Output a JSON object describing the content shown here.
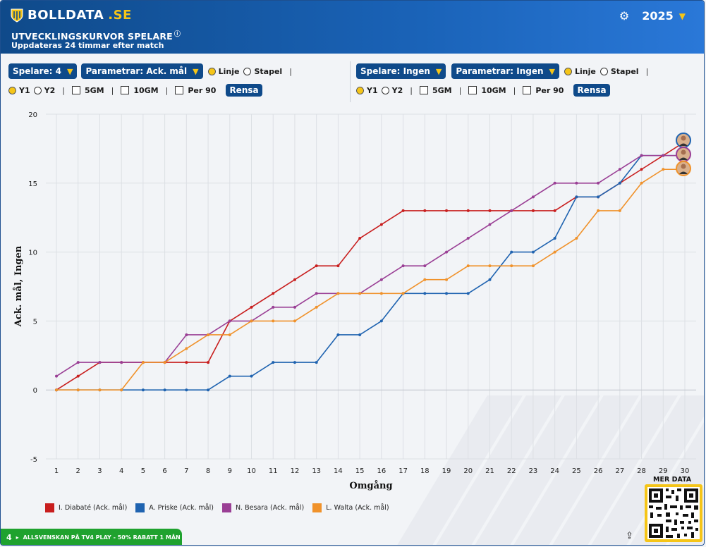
{
  "header": {
    "brand": "BOLLDATA",
    "brand_suffix": ".SE",
    "year": "2025",
    "title": "UTVECKLINGSKURVOR SPELARE",
    "subtitle": "Uppdateras 24 timmar efter match"
  },
  "left_panel": {
    "players_select": "Spelare: 4",
    "params_select": "Parametrar: Ack. mål",
    "radio_line": "Linje",
    "radio_bar": "Stapel",
    "radio_y1": "Y1",
    "radio_y2": "Y2",
    "check_5gm": "5GM",
    "check_10gm": "10GM",
    "check_per90": "Per 90",
    "clear": "Rensa"
  },
  "right_panel": {
    "players_select": "Spelare: Ingen",
    "params_select": "Parametrar: Ingen",
    "radio_line": "Linje",
    "radio_bar": "Stapel",
    "radio_y1": "Y1",
    "radio_y2": "Y2",
    "check_5gm": "5GM",
    "check_10gm": "10GM",
    "check_per90": "Per 90",
    "clear": "Rensa"
  },
  "colors": {
    "red": "#c81e1e",
    "blue": "#1f63b0",
    "purple": "#9a3f95",
    "orange": "#f0922b"
  },
  "chart_data": {
    "type": "line",
    "xlabel": "Omgång",
    "ylabel": "Ack. mål, Ingen",
    "xlim": [
      1,
      30
    ],
    "ylim": [
      -5,
      20
    ],
    "yticks": [
      -5,
      0,
      5,
      10,
      15,
      20
    ],
    "x": [
      1,
      2,
      3,
      4,
      5,
      6,
      7,
      8,
      9,
      10,
      11,
      12,
      13,
      14,
      15,
      16,
      17,
      18,
      19,
      20,
      21,
      22,
      23,
      24,
      25,
      26,
      27,
      28,
      29,
      30
    ],
    "grid": true,
    "legend": "bottom-left",
    "series": [
      {
        "name": "I. Diabaté (Ack. mål)",
        "color": "#c81e1e",
        "values": [
          0,
          1,
          2,
          2,
          2,
          2,
          2,
          2,
          5,
          6,
          7,
          8,
          9,
          9,
          11,
          12,
          13,
          13,
          13,
          13,
          13,
          13,
          13,
          13,
          14,
          14,
          15,
          16,
          17,
          18
        ]
      },
      {
        "name": "A. Priske (Ack. mål)",
        "color": "#1f63b0",
        "values": [
          0,
          0,
          0,
          0,
          0,
          0,
          0,
          0,
          1,
          1,
          2,
          2,
          2,
          4,
          4,
          5,
          7,
          7,
          7,
          7,
          8,
          10,
          10,
          11,
          14,
          14,
          15,
          17,
          17,
          17
        ]
      },
      {
        "name": "N. Besara (Ack. mål)",
        "color": "#9a3f95",
        "values": [
          1,
          2,
          2,
          2,
          2,
          2,
          4,
          4,
          5,
          5,
          6,
          6,
          7,
          7,
          7,
          8,
          9,
          9,
          10,
          11,
          12,
          13,
          14,
          15,
          15,
          15,
          16,
          17,
          17,
          17
        ]
      },
      {
        "name": "L. Walta (Ack. mål)",
        "color": "#f0922b",
        "values": [
          0,
          0,
          0,
          0,
          2,
          2,
          3,
          4,
          4,
          5,
          5,
          5,
          6,
          7,
          7,
          7,
          7,
          8,
          8,
          9,
          9,
          9,
          9,
          10,
          11,
          13,
          13,
          15,
          16,
          16
        ]
      }
    ]
  },
  "footer": {
    "banner_num": "4",
    "banner_text": "ALLSVENSKAN PÅ TV4 PLAY - 50% RABATT 1 MÅN",
    "more_data": "MER DATA"
  }
}
